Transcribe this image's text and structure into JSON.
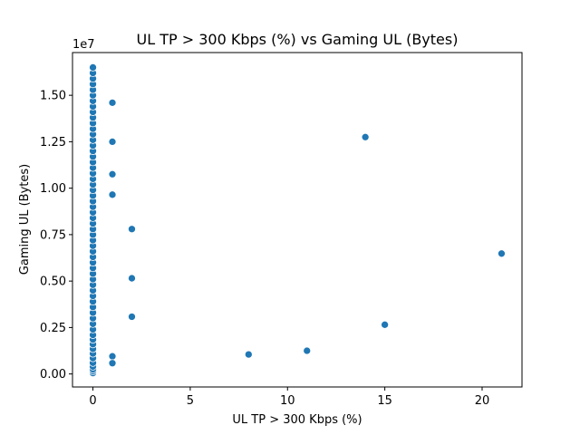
{
  "chart_data": {
    "type": "scatter",
    "title": "UL TP > 300 Kbps (%) vs Gaming UL (Bytes)",
    "xlabel": "UL TP > 300 Kbps (%)",
    "ylabel": "Gaming UL (Bytes)",
    "y_multiplier_label": "1e7",
    "xlim": [
      -1.05,
      22.05
    ],
    "ylim": [
      -700000,
      17300000
    ],
    "xticks": [
      {
        "value": 0,
        "label": "0"
      },
      {
        "value": 5,
        "label": "5"
      },
      {
        "value": 10,
        "label": "10"
      },
      {
        "value": 15,
        "label": "15"
      },
      {
        "value": 20,
        "label": "20"
      }
    ],
    "yticks": [
      {
        "value": 0,
        "label": "0.00"
      },
      {
        "value": 2500000,
        "label": "0.25"
      },
      {
        "value": 5000000,
        "label": "0.50"
      },
      {
        "value": 7500000,
        "label": "0.75"
      },
      {
        "value": 10000000,
        "label": "1.00"
      },
      {
        "value": 12500000,
        "label": "1.25"
      },
      {
        "value": 15000000,
        "label": "1.50"
      }
    ],
    "marker_color": "#1f77b4",
    "grid": false,
    "points": [
      {
        "x": 0,
        "y": 50000
      },
      {
        "x": 0,
        "y": 150000
      },
      {
        "x": 0,
        "y": 250000
      },
      {
        "x": 0,
        "y": 400000
      },
      {
        "x": 0,
        "y": 600000
      },
      {
        "x": 0,
        "y": 850000
      },
      {
        "x": 0,
        "y": 1100000
      },
      {
        "x": 0,
        "y": 1350000
      },
      {
        "x": 0,
        "y": 1600000
      },
      {
        "x": 0,
        "y": 1850000
      },
      {
        "x": 0,
        "y": 2100000
      },
      {
        "x": 0,
        "y": 2400000
      },
      {
        "x": 0,
        "y": 2700000
      },
      {
        "x": 0,
        "y": 3000000
      },
      {
        "x": 0,
        "y": 3300000
      },
      {
        "x": 0,
        "y": 3600000
      },
      {
        "x": 0,
        "y": 3900000
      },
      {
        "x": 0,
        "y": 4200000
      },
      {
        "x": 0,
        "y": 4500000
      },
      {
        "x": 0,
        "y": 4800000
      },
      {
        "x": 0,
        "y": 5100000
      },
      {
        "x": 0,
        "y": 5400000
      },
      {
        "x": 0,
        "y": 5700000
      },
      {
        "x": 0,
        "y": 6000000
      },
      {
        "x": 0,
        "y": 6300000
      },
      {
        "x": 0,
        "y": 6600000
      },
      {
        "x": 0,
        "y": 6900000
      },
      {
        "x": 0,
        "y": 7200000
      },
      {
        "x": 0,
        "y": 7500000
      },
      {
        "x": 0,
        "y": 7800000
      },
      {
        "x": 0,
        "y": 8100000
      },
      {
        "x": 0,
        "y": 8400000
      },
      {
        "x": 0,
        "y": 8700000
      },
      {
        "x": 0,
        "y": 9000000
      },
      {
        "x": 0,
        "y": 9300000
      },
      {
        "x": 0,
        "y": 9600000
      },
      {
        "x": 0,
        "y": 9900000
      },
      {
        "x": 0,
        "y": 10200000
      },
      {
        "x": 0,
        "y": 10500000
      },
      {
        "x": 0,
        "y": 10800000
      },
      {
        "x": 0,
        "y": 11100000
      },
      {
        "x": 0,
        "y": 11400000
      },
      {
        "x": 0,
        "y": 11700000
      },
      {
        "x": 0,
        "y": 12000000
      },
      {
        "x": 0,
        "y": 12300000
      },
      {
        "x": 0,
        "y": 12600000
      },
      {
        "x": 0,
        "y": 12900000
      },
      {
        "x": 0,
        "y": 13200000
      },
      {
        "x": 0,
        "y": 13500000
      },
      {
        "x": 0,
        "y": 13800000
      },
      {
        "x": 0,
        "y": 14100000
      },
      {
        "x": 0,
        "y": 14400000
      },
      {
        "x": 0,
        "y": 14700000
      },
      {
        "x": 0,
        "y": 15000000
      },
      {
        "x": 0,
        "y": 15300000
      },
      {
        "x": 0,
        "y": 15600000
      },
      {
        "x": 0,
        "y": 15900000
      },
      {
        "x": 0,
        "y": 16200000
      },
      {
        "x": 0,
        "y": 16500000
      },
      {
        "x": 1,
        "y": 14600000
      },
      {
        "x": 1,
        "y": 12500000
      },
      {
        "x": 1,
        "y": 10750000
      },
      {
        "x": 1,
        "y": 9650000
      },
      {
        "x": 1,
        "y": 950000
      },
      {
        "x": 1,
        "y": 580000
      },
      {
        "x": 2,
        "y": 7800000
      },
      {
        "x": 2,
        "y": 5150000
      },
      {
        "x": 2,
        "y": 3080000
      },
      {
        "x": 8,
        "y": 1050000
      },
      {
        "x": 11,
        "y": 1250000
      },
      {
        "x": 14,
        "y": 12750000
      },
      {
        "x": 15,
        "y": 2650000
      },
      {
        "x": 21,
        "y": 6480000
      }
    ]
  }
}
